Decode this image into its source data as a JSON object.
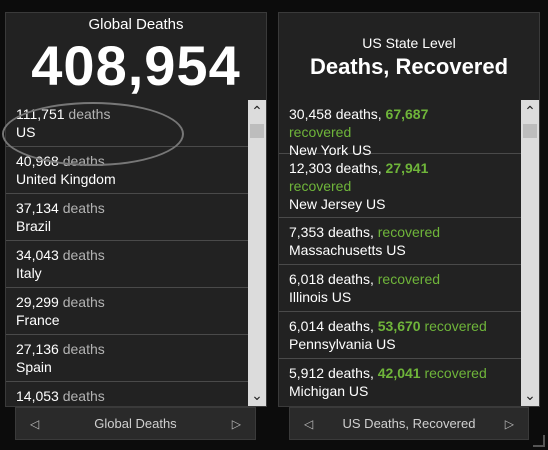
{
  "global": {
    "title": "Global Deaths",
    "total": "408,954",
    "unit": "deaths",
    "items": [
      {
        "value": "111,751",
        "place": "US"
      },
      {
        "value": "40,968",
        "place": "United Kingdom"
      },
      {
        "value": "37,134",
        "place": "Brazil"
      },
      {
        "value": "34,043",
        "place": "Italy"
      },
      {
        "value": "29,299",
        "place": "France"
      },
      {
        "value": "27,136",
        "place": "Spain"
      },
      {
        "value": "14,053",
        "place": ""
      }
    ],
    "footer_label": "Global Deaths"
  },
  "us": {
    "subtitle": "US State Level",
    "title": "Deaths, Recovered",
    "deaths_word": "deaths,",
    "recovered_word": "recovered",
    "items": [
      {
        "deaths": "30,458",
        "recovered": "67,687",
        "place": "New York US"
      },
      {
        "deaths": "12,303",
        "recovered": "27,941",
        "place": "New Jersey US"
      },
      {
        "deaths": "7,353",
        "recovered": "",
        "place": "Massachusetts US"
      },
      {
        "deaths": "6,018",
        "recovered": "",
        "place": "Illinois US"
      },
      {
        "deaths": "6,014",
        "recovered": "53,670",
        "place": "Pennsylvania US"
      },
      {
        "deaths": "5,912",
        "recovered": "42,041",
        "place": "Michigan US"
      }
    ],
    "footer_label": "US Deaths, Recovered"
  },
  "icons": {
    "scroll_up": "chevron-up-icon",
    "scroll_down": "chevron-down-icon",
    "prev": "triangle-left-icon",
    "next": "triangle-right-icon"
  },
  "colors": {
    "recovered": "#6fb53a",
    "panel_bg": "#222222",
    "unit_text": "#b3b3b3"
  }
}
